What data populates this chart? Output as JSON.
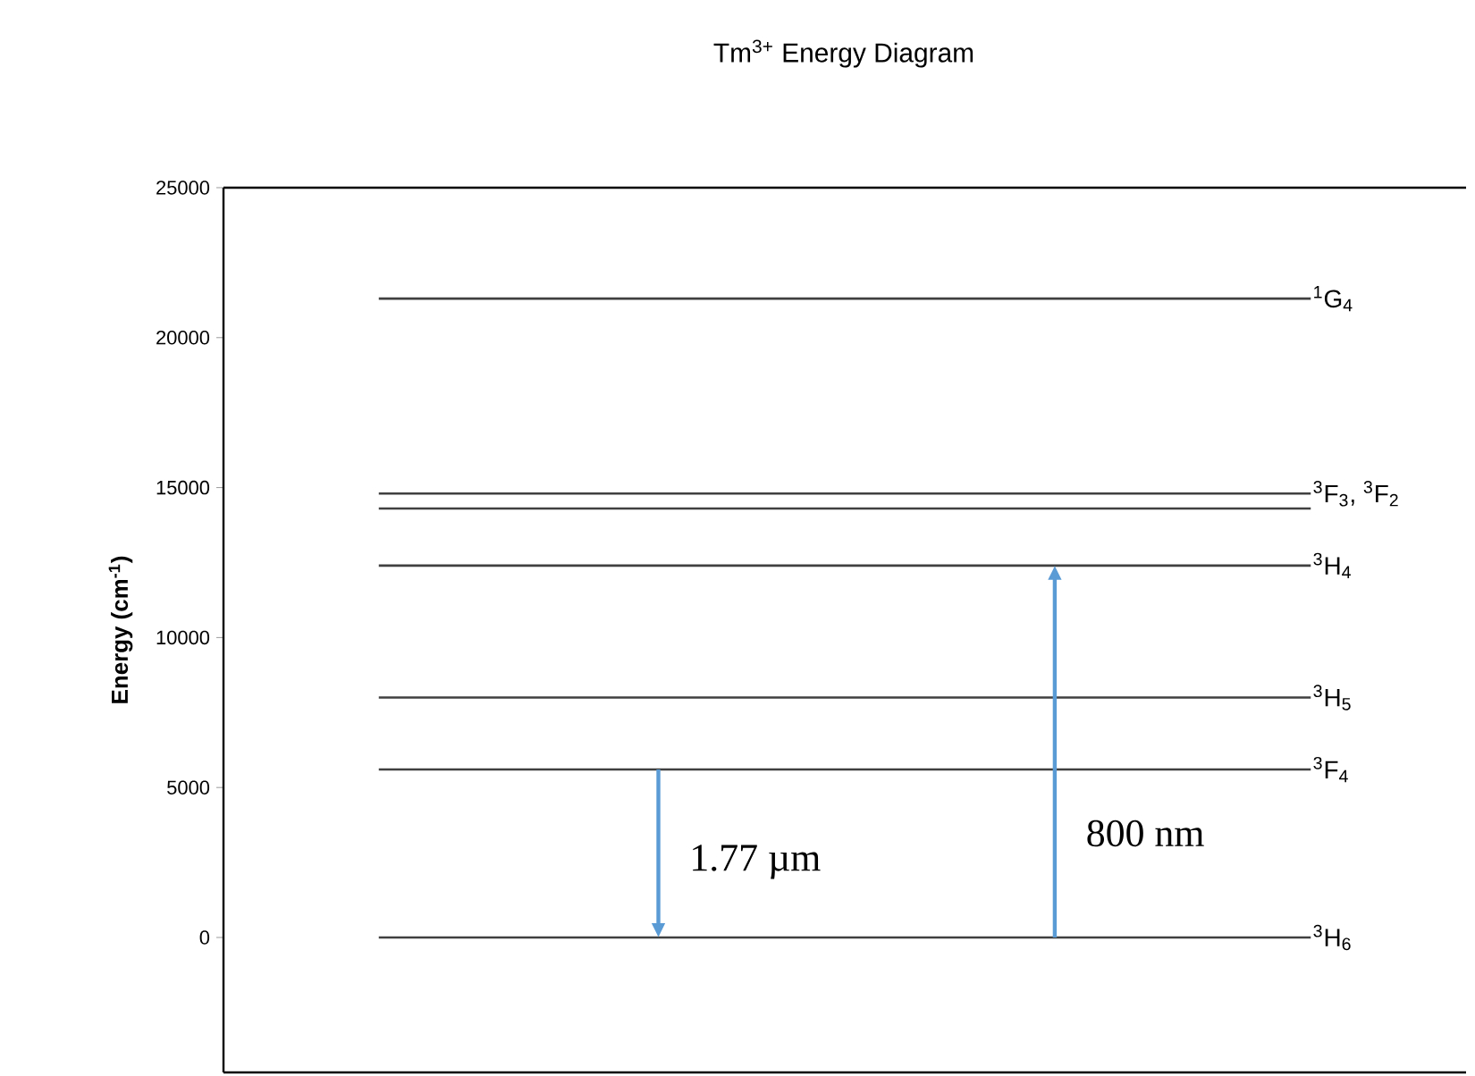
{
  "chart_data": {
    "type": "line",
    "title": "Tm$^{3+}$ Energy Diagram",
    "ylabel": "Energy (cm$^{-1}$)",
    "categories": [
      null,
      null,
      null,
      null
    ],
    "series": [
      {
        "name": "$^{1}$G$_{4}$",
        "color": "#404040",
        "values": [
          21300,
          21300,
          21300,
          21300
        ]
      },
      {
        "name": "$^{3}$F$_{3}$, $^{3}$F$_{2}$",
        "color": "#404040",
        "values": [
          14800,
          14800,
          14800,
          14800
        ]
      },
      {
        "color": "#404040",
        "values": [
          14300,
          14300,
          14300,
          14300
        ]
      },
      {
        "name": "$^{3}$H$_{4}$",
        "color": "#404040",
        "values": [
          12400,
          12400,
          12400,
          12400
        ]
      },
      {
        "name": "$^{3}$H$_{5}$",
        "color": "#404040",
        "values": [
          8000,
          8000,
          8000,
          8000
        ]
      },
      {
        "name": "$^{3}$F$_{4}$",
        "color": "#404040",
        "values": [
          5600,
          5600,
          5600,
          5600
        ]
      },
      {
        "name": "$^{3}$H$_{6}$",
        "color": "#404040",
        "values": [
          0,
          0,
          0,
          0
        ]
      }
    ],
    "annotations": [
      "1.77 µm",
      "800 nm"
    ],
    "ylim": [
      -4500,
      25000
    ],
    "yticks": [
      0,
      5000,
      10000,
      15000,
      20000,
      25000
    ],
    "grid": false,
    "legend": false,
    "marker": "none",
    "line_style": "solid"
  }
}
